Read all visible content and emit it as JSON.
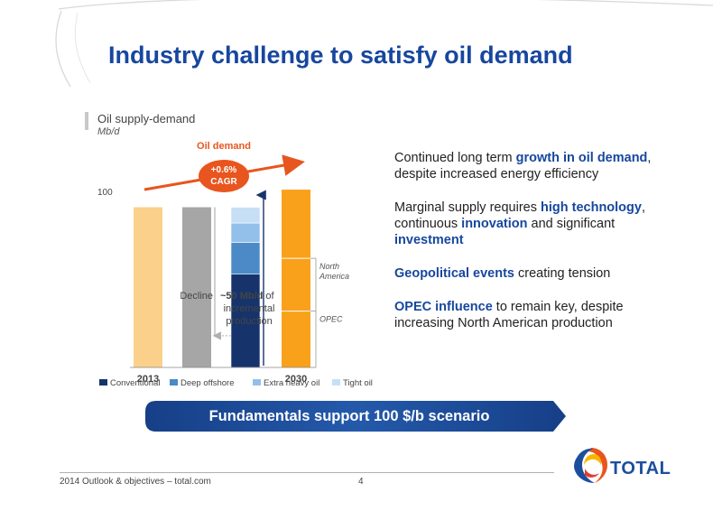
{
  "slide": {
    "title": "Industry challenge to satisfy oil demand",
    "footer": "2014 Outlook & objectives – total.com",
    "page_number": "4",
    "banner": "Fundamentals support 100 $/b scenario",
    "logo_text": "TOTAL",
    "colors": {
      "title_blue": "#17479e",
      "accent_orange": "#e8551e",
      "banner_blue": "#1f4f9e"
    }
  },
  "bullets": [
    {
      "parts": [
        {
          "text": "Continued long term ",
          "hl": false
        },
        {
          "text": "growth in oil demand",
          "hl": true
        },
        {
          "text": ", despite increased energy efficiency",
          "hl": false
        }
      ]
    },
    {
      "parts": [
        {
          "text": "Marginal supply requires ",
          "hl": false
        },
        {
          "text": "high technology",
          "hl": true
        },
        {
          "text": ", continuous ",
          "hl": false
        },
        {
          "text": "innovation",
          "hl": true
        },
        {
          "text": " and significant ",
          "hl": false
        },
        {
          "text": "investment",
          "hl": true
        }
      ]
    },
    {
      "parts": [
        {
          "text": "Geopolitical events",
          "hl": true
        },
        {
          "text": " creating tension",
          "hl": false
        }
      ]
    },
    {
      "parts": [
        {
          "text": "OPEC influence",
          "hl": true
        },
        {
          "text": " to remain key, despite increasing North American production",
          "hl": false
        }
      ]
    }
  ],
  "chart_data": {
    "type": "bar",
    "title": "Oil supply-demand",
    "unit": "Mb/d",
    "tick_label": "100",
    "tick_value": 100,
    "ylim": [
      0,
      110
    ],
    "demand_label": "Oil demand",
    "cagr_label": [
      "+0.6%",
      "CAGR"
    ],
    "bars": [
      {
        "label": "2013",
        "value": 91,
        "color": "#fbd08a"
      },
      {
        "label": "",
        "value": 91,
        "color": "#a6a6a6",
        "role": "decline"
      },
      {
        "label": "",
        "value": 91,
        "role": "incremental",
        "segments": [
          {
            "value": 53
          },
          {
            "value": 18
          },
          {
            "value": 11
          },
          {
            "value": 9
          }
        ]
      },
      {
        "label": "2030",
        "value": 101,
        "color": "#f9a11b",
        "sub_labels": [
          "North America",
          "OPEC"
        ],
        "sub_boundaries": [
          62,
          32
        ]
      }
    ],
    "decline_line_value": 18,
    "decline_annotation": [
      "Decline",
      "~50 Mb/d of",
      "incremental",
      "production"
    ],
    "series": [
      {
        "name": "Conventional",
        "color": "#16346b"
      },
      {
        "name": "Deep offshore",
        "color": "#4b8ac6"
      },
      {
        "name": "Extra heavy oil",
        "color": "#93c0ea"
      },
      {
        "name": "Tight oil",
        "color": "#c7dff5"
      }
    ],
    "legend_position": "bottom",
    "grid": false
  }
}
